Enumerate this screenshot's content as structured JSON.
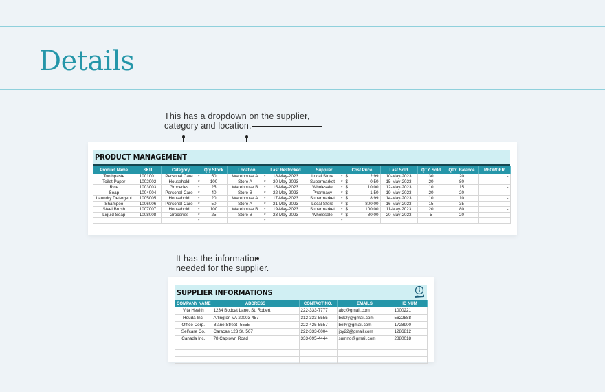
{
  "page": {
    "title": "Details"
  },
  "notes": {
    "dropdown": [
      "This has a dropdown on the supplier,",
      "category and location."
    ],
    "supplier": [
      "It has the information",
      "needed for the supplier."
    ]
  },
  "product_sheet": {
    "title": "PRODUCT MANAGEMENT",
    "columns": [
      "Product Name",
      "SKU",
      "Category",
      "Qty Stock",
      "Location",
      "Last Restocked",
      "Supplier",
      "Cost Price",
      "Last Sold",
      "QTY. Sold",
      "QTY. Balance",
      "REORDER"
    ],
    "rows": [
      [
        "Toothpaste",
        "1001001",
        "Personal Care",
        "50",
        "Warehouse A",
        "18-May-2023",
        "Local Store",
        "$",
        "2.99",
        "10-May-2023",
        "30",
        "20",
        "-"
      ],
      [
        "Toilet Paper",
        "1002002",
        "Household",
        "100",
        "Store A",
        "20-May-2023",
        "Supermarket",
        "$",
        "0.50",
        "15-May-2023",
        "20",
        "80",
        "-"
      ],
      [
        "Rice",
        "1003003",
        "Groceries",
        "25",
        "Warehouse B",
        "15-May-2023",
        "Wholesale",
        "$",
        "10.00",
        "12-May-2023",
        "10",
        "15",
        "-"
      ],
      [
        "Soap",
        "1004004",
        "Personal Care",
        "40",
        "Store B",
        "22-May-2023",
        "Pharmacy",
        "$",
        "1.50",
        "19-May-2023",
        "20",
        "20",
        "-"
      ],
      [
        "Laundry Detergent",
        "1005005",
        "Household",
        "20",
        "Warehouse A",
        "17-May-2023",
        "Supermarket",
        "$",
        "8.99",
        "14-May-2023",
        "10",
        "10",
        "-"
      ],
      [
        "Shampoo",
        "1006006",
        "Personal Care",
        "50",
        "Store A",
        "21-May-2023",
        "Local Store",
        "$",
        "800.00",
        "16-May-2023",
        "15",
        "35",
        "-"
      ],
      [
        "Steel Brush",
        "1007007",
        "Household",
        "100",
        "Warehouse B",
        "19-May-2023",
        "Supermarket",
        "$",
        "100.00",
        "11-May-2023",
        "20",
        "80",
        "-"
      ],
      [
        "Liquid Soap",
        "1008008",
        "Groceries",
        "25",
        "Store B",
        "23-May-2023",
        "Wholesale",
        "$",
        "80.00",
        "20-May-2023",
        "5",
        "20",
        "-"
      ]
    ]
  },
  "supplier_sheet": {
    "title": "SUPPLIER INFORMATIONS",
    "columns": [
      "COMPANY NAME",
      "ADDRESS",
      "CONTACT NO.",
      "EMAILS",
      "ID NUM"
    ],
    "rows": [
      [
        "Vita Health",
        "1234 Bodcat Lane, St. Robert",
        "222-333-7777",
        "abc@gmail.com",
        "1000221"
      ],
      [
        "Houda Inc.",
        "Arlington VA 20003-457",
        "312-333-5555",
        "bckzy@gmail.com",
        "5622888"
      ],
      [
        "Office Corp.",
        "Blane Street -5555",
        "222-425-5557",
        "belly@gmail.com",
        "1728900"
      ],
      [
        "Selfcare Co.",
        "Caracas 123 St. 567",
        "222-333-0004",
        "joy22@gmail.com",
        "1286812"
      ],
      [
        "Canada Inc.",
        "78 Captown Road",
        "333-095-4444",
        "sumno@gmail.com",
        "2880018"
      ]
    ]
  },
  "colors": {
    "accent": "#2596a9",
    "header_band": "#d0eff3",
    "dark_bar": "#15464f",
    "background": "#eef3f7"
  },
  "icons": [
    "info-icon",
    "hand-icon"
  ]
}
